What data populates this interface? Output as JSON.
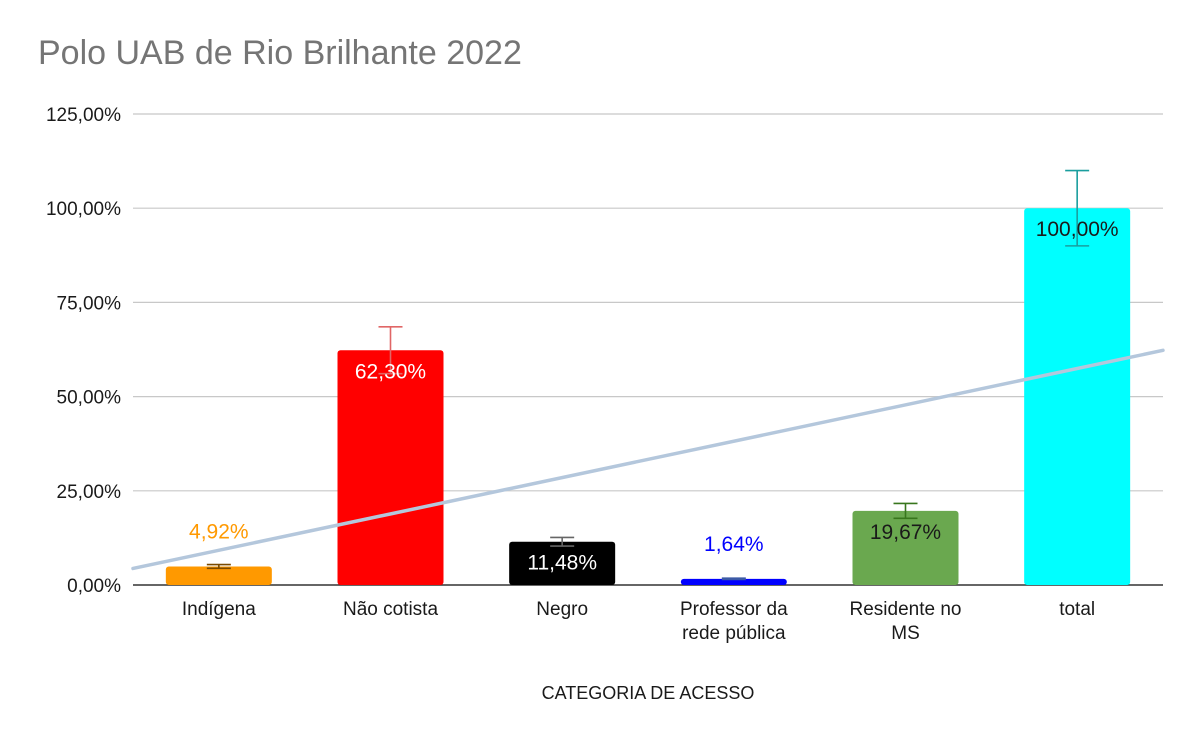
{
  "chart_data": {
    "type": "bar",
    "title": "Polo UAB de Rio Brilhante 2022",
    "xlabel": "CATEGORIA DE ACESSO",
    "ylabel": "",
    "ylim": [
      0,
      125
    ],
    "yticks": [
      "0,00%",
      "25,00%",
      "50,00%",
      "75,00%",
      "100,00%",
      "125,00%"
    ],
    "grid": true,
    "legend": "none",
    "categories": [
      [
        "Indígena"
      ],
      [
        "Não cotista"
      ],
      [
        "Negro"
      ],
      [
        "Professor da",
        "rede pública"
      ],
      [
        "Residente no",
        "MS"
      ],
      [
        "total"
      ]
    ],
    "values": [
      4.92,
      62.3,
      11.48,
      1.64,
      19.67,
      100.0
    ],
    "data_labels": [
      "4,92%",
      "62,30%",
      "11,48%",
      "1,64%",
      "19,67%",
      "100,00%"
    ],
    "colors": [
      "#ff9900",
      "#ff0000",
      "#000000",
      "#0000ff",
      "#6aa84f",
      "#00ffff"
    ],
    "label_colors": [
      "#ff9900",
      "#ffffff",
      "#ffffff",
      "#0000ff",
      "#1a1a1a",
      "#1a1a1a"
    ],
    "label_position": [
      "above",
      "inside",
      "inside",
      "above",
      "inside",
      "inside"
    ],
    "error_bar_fraction": 0.1,
    "error_bar_colors": [
      "#7a4a00",
      "#e06666",
      "#666666",
      "#3c5aa6",
      "#38761d",
      "#1a9e9e"
    ],
    "trendline": {
      "type": "linear",
      "color": "#b4c7dc"
    }
  }
}
